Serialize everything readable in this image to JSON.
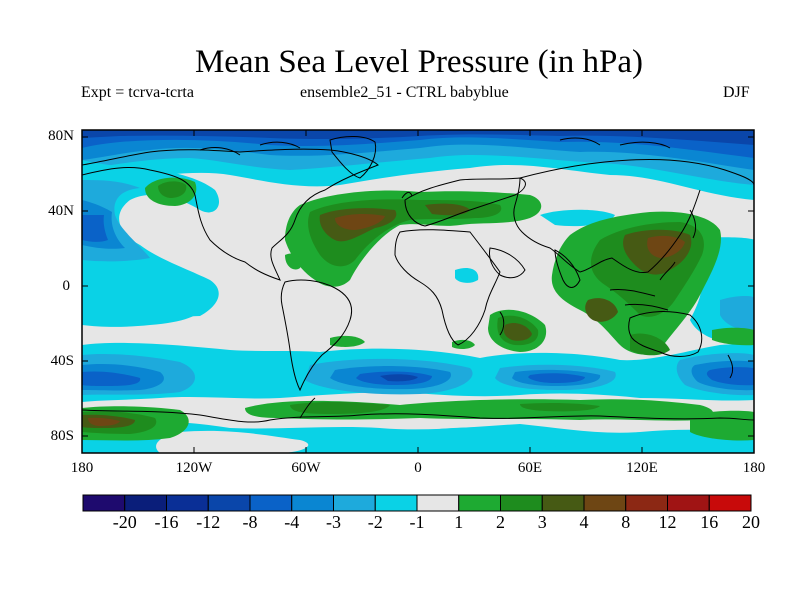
{
  "title": "Mean Sea Level Pressure (in hPa)",
  "subtitle_left": "Expt = tcrva-tcrta",
  "subtitle_center": "ensemble2_51 - CTRL babyblue",
  "subtitle_right": "DJF",
  "y_ticks": [
    "80N",
    "40N",
    "0",
    "40S",
    "80S"
  ],
  "x_ticks": [
    "180",
    "120W",
    "60W",
    "0",
    "60E",
    "120E",
    "180"
  ],
  "colorbar": {
    "labels": [
      "-20",
      "-16",
      "-12",
      "-8",
      "-4",
      "-3",
      "-2",
      "-1",
      "1",
      "2",
      "3",
      "4",
      "8",
      "12",
      "16",
      "20"
    ],
    "colors": [
      "#1e0a6e",
      "#0a1e7a",
      "#0a2f96",
      "#0a46aa",
      "#0a62c8",
      "#0a86d2",
      "#1eaadc",
      "#0ad2e6",
      "#e6e6e6",
      "#1eaa32",
      "#1e8c1e",
      "#465a14",
      "#6e4614",
      "#8c2814",
      "#a01414",
      "#c80a0a"
    ]
  },
  "map_colors": {
    "neutral": "#e6e6e6",
    "neg1": "#0ad2e6",
    "neg2": "#1eaadc",
    "neg3": "#0a86d2",
    "neg4": "#0a62c8",
    "neg5": "#0a46aa",
    "neg6": "#0a2f96",
    "pos1": "#1eaa32",
    "pos2": "#1e8c1e",
    "pos3": "#465a14",
    "pos4": "#6e4614"
  }
}
